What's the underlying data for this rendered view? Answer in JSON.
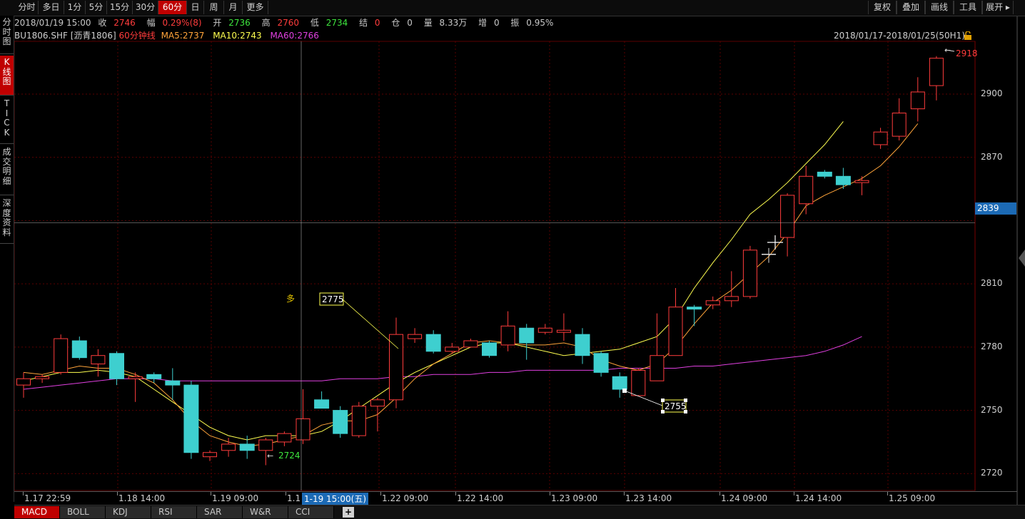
{
  "toolbar": {
    "periods": [
      "分时",
      "多日",
      "1分",
      "5分",
      "15分",
      "30分",
      "60分",
      "日",
      "周",
      "月",
      "更多"
    ],
    "active_period": "60分",
    "right": [
      "复权",
      "叠加",
      "画线",
      "工具",
      "展开"
    ]
  },
  "side_tabs": [
    {
      "label": "分时图",
      "active": false
    },
    {
      "label": "K线图",
      "active": true
    },
    {
      "label": "TICK",
      "active": false
    },
    {
      "label": "成交明细",
      "active": false
    },
    {
      "label": "深度资料",
      "active": false
    }
  ],
  "info": {
    "datetime": "2018/01/19 15:00",
    "close_label": "收",
    "close": "2746",
    "change_label": "幅",
    "change": "0.29%(8)",
    "open_label": "开",
    "open": "2736",
    "high_label": "高",
    "high": "2760",
    "low_label": "低",
    "low": "2734",
    "settle_label": "结",
    "settle": "0",
    "oi_label": "仓",
    "oi": "0",
    "volume_label": "量",
    "volume": "8.33万",
    "incr_label": "增",
    "incr": "0",
    "amp_label": "振",
    "amp": "0.95%"
  },
  "indicator": {
    "symbol": "BU1806.SHF [沥青1806]",
    "period": "60分钟线",
    "ma5": "MA5:2737",
    "ma10": "MA10:2743",
    "ma60": "MA60:2766"
  },
  "range": "2018/01/17-2018/01/25(50H1)",
  "colors": {
    "up": "#ff3c3c",
    "down": "#3ecfcf",
    "ma5": "#ffa43a",
    "ma10": "#ffff50",
    "ma60": "#e040e0",
    "grid": "#5a0000",
    "badge": "#1c6ab5"
  },
  "y_axis": {
    "ticks": [
      "2720",
      "2750",
      "2780",
      "2810",
      "2839",
      "2870",
      "2900"
    ],
    "crosshair_value": "2839"
  },
  "x_axis": {
    "labels": [
      "1.17 22:59",
      "1.18 14:00",
      "1.19 09:00",
      "1.1",
      "1.22 09:00",
      "1.22 14:00",
      "1.23 09:00",
      "1.23 14:00",
      "1.24 09:00",
      "1.24 14:00",
      "1.25 09:00"
    ],
    "crosshair_label": "1-19 15:00(五)"
  },
  "annotations": {
    "high_mark": "2918",
    "low_mark": "2724",
    "callout_top": "2775",
    "callout_bottom": "2755",
    "note": "多"
  },
  "tabs": [
    "MACD",
    "BOLL",
    "KDJ",
    "RSI",
    "SAR",
    "W&R",
    "CCI"
  ],
  "active_tab": "MACD",
  "chart_data": {
    "type": "candlestick",
    "y_range": [
      2712,
      2925
    ],
    "candles": [
      {
        "o": 2762,
        "h": 2768,
        "l": 2756,
        "c": 2765
      },
      {
        "o": 2765,
        "h": 2767,
        "l": 2763,
        "c": 2766
      },
      {
        "o": 2768,
        "h": 2786,
        "l": 2767,
        "c": 2784
      },
      {
        "o": 2783,
        "h": 2785,
        "l": 2774,
        "c": 2775
      },
      {
        "o": 2772,
        "h": 2779,
        "l": 2766,
        "c": 2776
      },
      {
        "o": 2777,
        "h": 2778,
        "l": 2762,
        "c": 2765
      },
      {
        "o": 2765,
        "h": 2768,
        "l": 2754,
        "c": 2766
      },
      {
        "o": 2767,
        "h": 2768,
        "l": 2763,
        "c": 2765
      },
      {
        "o": 2764,
        "h": 2770,
        "l": 2755,
        "c": 2762
      },
      {
        "o": 2762,
        "h": 2764,
        "l": 2727,
        "c": 2730
      },
      {
        "o": 2728,
        "h": 2731,
        "l": 2726,
        "c": 2730
      },
      {
        "o": 2731,
        "h": 2737,
        "l": 2728,
        "c": 2734
      },
      {
        "o": 2734,
        "h": 2738,
        "l": 2727,
        "c": 2731
      },
      {
        "o": 2731,
        "h": 2737,
        "l": 2724,
        "c": 2736
      },
      {
        "o": 2735,
        "h": 2740,
        "l": 2733,
        "c": 2739
      },
      {
        "o": 2736,
        "h": 2760,
        "l": 2734,
        "c": 2746
      },
      {
        "o": 2755,
        "h": 2759,
        "l": 2751,
        "c": 2751
      },
      {
        "o": 2750,
        "h": 2752,
        "l": 2737,
        "c": 2739
      },
      {
        "o": 2738,
        "h": 2754,
        "l": 2737,
        "c": 2752
      },
      {
        "o": 2752,
        "h": 2756,
        "l": 2740,
        "c": 2755
      },
      {
        "o": 2755,
        "h": 2794,
        "l": 2751,
        "c": 2786
      },
      {
        "o": 2784,
        "h": 2789,
        "l": 2782,
        "c": 2786
      },
      {
        "o": 2786,
        "h": 2788,
        "l": 2777,
        "c": 2778
      },
      {
        "o": 2778,
        "h": 2782,
        "l": 2777,
        "c": 2780
      },
      {
        "o": 2780,
        "h": 2784,
        "l": 2780,
        "c": 2783
      },
      {
        "o": 2782,
        "h": 2783,
        "l": 2775,
        "c": 2776
      },
      {
        "o": 2781,
        "h": 2797,
        "l": 2778,
        "c": 2790
      },
      {
        "o": 2789,
        "h": 2791,
        "l": 2774,
        "c": 2782
      },
      {
        "o": 2787,
        "h": 2791,
        "l": 2786,
        "c": 2789
      },
      {
        "o": 2787,
        "h": 2796,
        "l": 2783,
        "c": 2788
      },
      {
        "o": 2786,
        "h": 2789,
        "l": 2772,
        "c": 2776
      },
      {
        "o": 2777,
        "h": 2778,
        "l": 2766,
        "c": 2768
      },
      {
        "o": 2766,
        "h": 2768,
        "l": 2756,
        "c": 2760
      },
      {
        "o": 2757,
        "h": 2770,
        "l": 2757,
        "c": 2769
      },
      {
        "o": 2764,
        "h": 2796,
        "l": 2764,
        "c": 2776
      },
      {
        "o": 2776,
        "h": 2808,
        "l": 2776,
        "c": 2799
      },
      {
        "o": 2799,
        "h": 2800,
        "l": 2790,
        "c": 2798
      },
      {
        "o": 2800,
        "h": 2804,
        "l": 2798,
        "c": 2802
      },
      {
        "o": 2802,
        "h": 2816,
        "l": 2799,
        "c": 2804
      },
      {
        "o": 2804,
        "h": 2828,
        "l": 2803,
        "c": 2826
      },
      {
        "o": 2824,
        "h": 2827,
        "l": 2820,
        "c": 2824
      },
      {
        "o": 2832,
        "h": 2853,
        "l": 2823,
        "c": 2852
      },
      {
        "o": 2848,
        "h": 2866,
        "l": 2843,
        "c": 2861
      },
      {
        "o": 2863,
        "h": 2864,
        "l": 2860,
        "c": 2861
      },
      {
        "o": 2861,
        "h": 2865,
        "l": 2855,
        "c": 2857
      },
      {
        "o": 2858,
        "h": 2861,
        "l": 2852,
        "c": 2859
      },
      {
        "o": 2876,
        "h": 2884,
        "l": 2874,
        "c": 2882
      },
      {
        "o": 2880,
        "h": 2898,
        "l": 2878,
        "c": 2891
      },
      {
        "o": 2893,
        "h": 2908,
        "l": 2887,
        "c": 2901
      },
      {
        "o": 2904,
        "h": 2918,
        "l": 2897,
        "c": 2917
      }
    ],
    "ma5": [
      2768,
      2767,
      2769,
      2771,
      2770,
      2770,
      2767,
      2763,
      2755,
      2745,
      2738,
      2735,
      2733,
      2734,
      2736,
      2738,
      2743,
      2745,
      2745,
      2748,
      2756,
      2765,
      2772,
      2777,
      2782,
      2783,
      2782,
      2781,
      2781,
      2782,
      2780,
      2774,
      2771,
      2769,
      2772,
      2780,
      2791,
      2801,
      2807,
      2815,
      2823,
      2834,
      2847,
      2852,
      2856,
      2860,
      2866,
      2875,
      2886
    ],
    "ma10": [
      2764,
      2766,
      2768,
      2768,
      2769,
      2768,
      2766,
      2760,
      2754,
      2748,
      2742,
      2738,
      2736,
      2738,
      2738,
      2738,
      2740,
      2745,
      2751,
      2757,
      2763,
      2768,
      2772,
      2776,
      2780,
      2782,
      2782,
      2780,
      2778,
      2776,
      2777,
      2778,
      2779,
      2782,
      2785,
      2794,
      2808,
      2820,
      2831,
      2843,
      2850,
      2858,
      2867,
      2876,
      2887
    ],
    "ma60": [
      2760,
      2761,
      2762,
      2763,
      2764,
      2765,
      2765,
      2765,
      2764,
      2764,
      2764,
      2764,
      2764,
      2764,
      2764,
      2764,
      2764,
      2765,
      2765,
      2765,
      2766,
      2766,
      2767,
      2767,
      2767,
      2768,
      2768,
      2769,
      2769,
      2769,
      2769,
      2769,
      2770,
      2770,
      2770,
      2770,
      2771,
      2771,
      2772,
      2773,
      2774,
      2775,
      2776,
      2778,
      2781,
      2785
    ]
  }
}
